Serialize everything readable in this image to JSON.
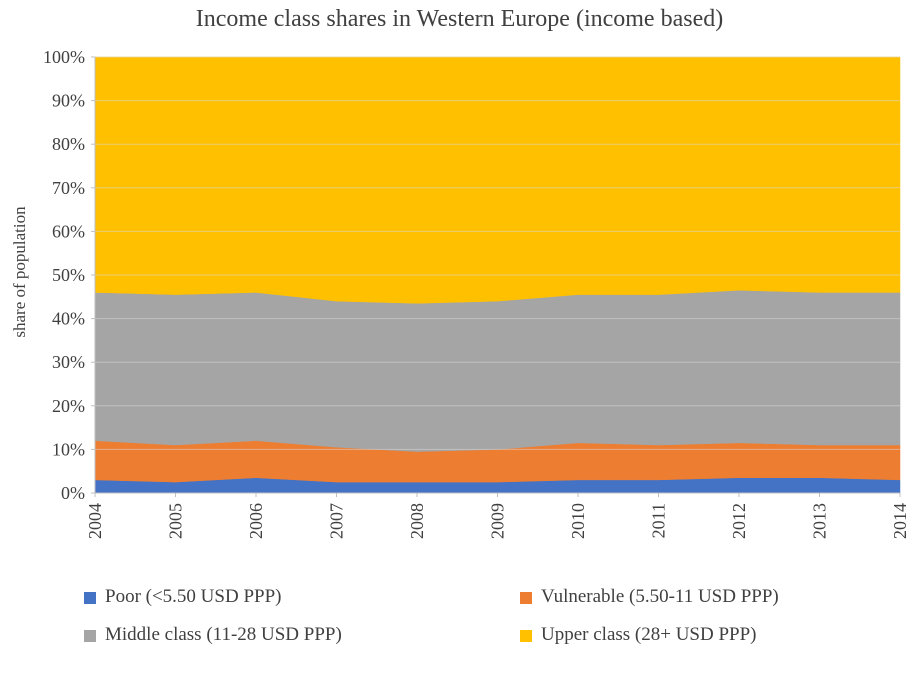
{
  "title": "Income class shares in Western Europe (income based)",
  "chart_data": {
    "type": "area",
    "stacked": true,
    "title": "Income class shares in Western Europe (income based)",
    "xlabel": "",
    "ylabel": "share of population",
    "ylim": [
      0,
      100
    ],
    "y_tick_step": 10,
    "y_tick_suffix": "%",
    "grid": true,
    "legend_position": "bottom",
    "x": [
      2004,
      2005,
      2006,
      2007,
      2008,
      2009,
      2010,
      2011,
      2012,
      2013,
      2014
    ],
    "series": [
      {
        "id": "poor",
        "name": "Poor (<5.50 USD PPP)",
        "color": "#4472C4",
        "values": [
          3,
          2.5,
          3.5,
          2.5,
          2.5,
          2.5,
          3,
          3,
          3.5,
          3.5,
          3
        ]
      },
      {
        "id": "vulnerable",
        "name": "Vulnerable (5.50-11 USD PPP)",
        "color": "#ED7D31",
        "values": [
          9,
          8.5,
          8.5,
          8,
          7,
          7.5,
          8.5,
          8,
          8,
          7.5,
          8
        ]
      },
      {
        "id": "middle",
        "name": "Middle class (11-28 USD PPP)",
        "color": "#A5A5A5",
        "values": [
          34,
          34.5,
          34,
          33.5,
          34,
          34,
          34,
          34.5,
          35,
          35,
          35
        ]
      },
      {
        "id": "upper",
        "name": "Upper class (28+ USD PPP)",
        "color": "#FFC000",
        "values": [
          54,
          54.5,
          54,
          56,
          56.5,
          56,
          54.5,
          54.5,
          53.5,
          54,
          54
        ]
      }
    ],
    "axis_color": "#BFBFBF",
    "grid_color": "#D9D9D9",
    "text_color": "#404040"
  }
}
